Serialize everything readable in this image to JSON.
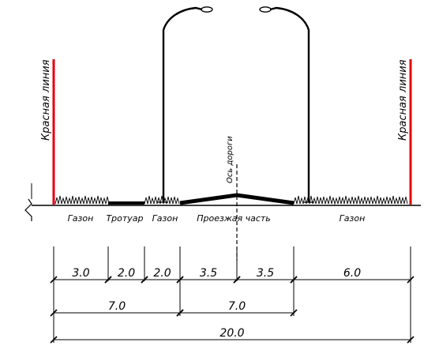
{
  "colors": {
    "red_line": "#e3000f",
    "ink": "#000000",
    "background": "#ffffff"
  },
  "red_line_labels": {
    "left": "Красная линия",
    "right": "Красная линия"
  },
  "road_axis_label": "Ось дороги",
  "segments": [
    {
      "key": "gazon-left",
      "label": "Газон",
      "width": 3.0,
      "dim": "3.0",
      "surface": "grass"
    },
    {
      "key": "sidewalk",
      "label": "Тротуар",
      "width": 2.0,
      "dim": "2.0",
      "surface": "pavement"
    },
    {
      "key": "gazon-mid",
      "label": "Газон",
      "width": 2.0,
      "dim": "2.0",
      "surface": "grass"
    },
    {
      "key": "carriageway-left",
      "label": "Проезжая часть",
      "width": 3.5,
      "dim": "3.5",
      "surface": "road"
    },
    {
      "key": "carriageway-right",
      "label": "",
      "width": 3.5,
      "dim": "3.5",
      "surface": "road"
    },
    {
      "key": "gazon-right",
      "label": "Газон",
      "width": 6.0,
      "dim": "6.0",
      "surface": "grass"
    }
  ],
  "dimension_tiers": [
    {
      "items": [
        {
          "from": 0,
          "to": 3.0,
          "label": "3.0"
        },
        {
          "from": 3.0,
          "to": 5.0,
          "label": "2.0"
        },
        {
          "from": 5.0,
          "to": 7.0,
          "label": "2.0"
        },
        {
          "from": 7.0,
          "to": 10.5,
          "label": "3.5"
        },
        {
          "from": 10.5,
          "to": 14.0,
          "label": "3.5"
        },
        {
          "from": 14.0,
          "to": 20.0,
          "label": "6.0"
        }
      ]
    },
    {
      "items": [
        {
          "from": 0,
          "to": 7.0,
          "label": "7.0"
        },
        {
          "from": 7.0,
          "to": 14.0,
          "label": "7.0"
        }
      ]
    },
    {
      "items": [
        {
          "from": 0,
          "to": 20.0,
          "label": "20.0"
        }
      ]
    }
  ],
  "total_width": "20.0"
}
